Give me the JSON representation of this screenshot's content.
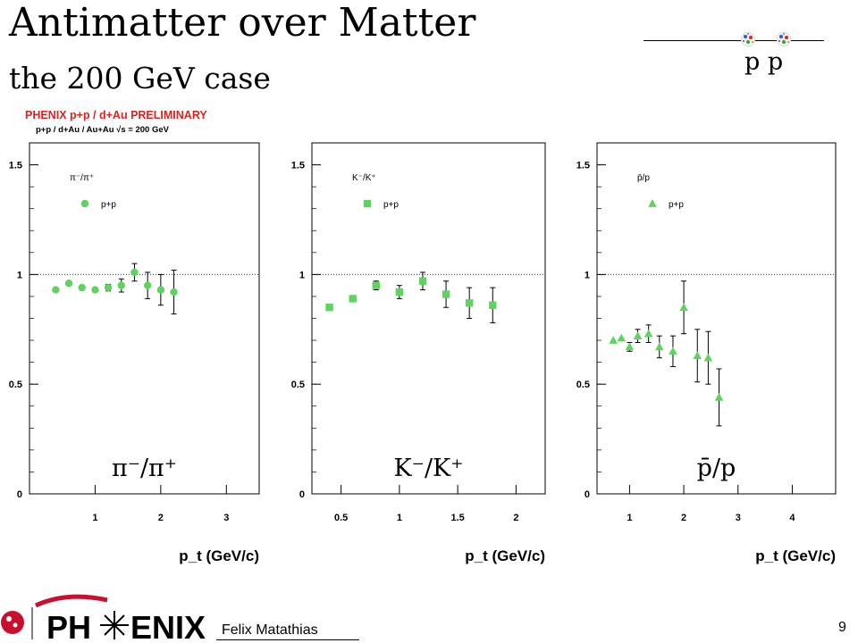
{
  "slide": {
    "title": "Antimatter over Matter",
    "subtitle": "the 200 GeV case",
    "header_particles": "p  p",
    "experiment_label": "PHENIX p+p / d+Au PRELIMINARY",
    "system_label": "p+p / d+Au / Au+Au  √s = 200 GeV",
    "author": "Felix Matathias",
    "page_number": "9",
    "logo_text_left": "PH",
    "logo_text_right": "ENIX"
  },
  "colors": {
    "marker": "#5fd35f",
    "experiment_label": "#e0211d",
    "text": "#000000"
  },
  "chart_data": [
    {
      "type": "scatter",
      "inset_label": "π⁻/π⁺",
      "overlay_label": "π⁻/π⁺",
      "legend": "p+p",
      "marker": "circle",
      "xlabel": "p_t (GeV/c)",
      "xlim": [
        0,
        3.5
      ],
      "ylim": [
        0,
        1.6
      ],
      "xticks": [
        "1",
        "2",
        "3"
      ],
      "yticks": [
        "0",
        "0.5",
        "1",
        "1.5"
      ],
      "reference_line": 1,
      "points": [
        {
          "x": 0.4,
          "y": 0.93,
          "err": 0.0
        },
        {
          "x": 0.6,
          "y": 0.96,
          "err": 0.0
        },
        {
          "x": 0.8,
          "y": 0.94,
          "err": 0.0
        },
        {
          "x": 1.0,
          "y": 0.93,
          "err": 0.01
        },
        {
          "x": 1.2,
          "y": 0.94,
          "err": 0.015
        },
        {
          "x": 1.4,
          "y": 0.95,
          "err": 0.03
        },
        {
          "x": 1.6,
          "y": 1.01,
          "err": 0.04
        },
        {
          "x": 1.8,
          "y": 0.95,
          "err": 0.06
        },
        {
          "x": 2.0,
          "y": 0.93,
          "err": 0.07
        },
        {
          "x": 2.2,
          "y": 0.92,
          "err": 0.1
        }
      ]
    },
    {
      "type": "scatter",
      "inset_label": "K⁻/K⁺",
      "overlay_label": "K⁻/K⁺",
      "legend": "p+p",
      "marker": "square",
      "xlabel": "p_t (GeV/c)",
      "xlim": [
        0.25,
        2.25
      ],
      "ylim": [
        0,
        1.6
      ],
      "xticks": [
        "0.5",
        "1",
        "1.5",
        "2"
      ],
      "yticks": [
        "0",
        "0.5",
        "1",
        "1.5"
      ],
      "reference_line": 1,
      "points": [
        {
          "x": 0.4,
          "y": 0.85,
          "err": 0.0
        },
        {
          "x": 0.6,
          "y": 0.89,
          "err": 0.0
        },
        {
          "x": 0.8,
          "y": 0.95,
          "err": 0.02
        },
        {
          "x": 1.0,
          "y": 0.92,
          "err": 0.03
        },
        {
          "x": 1.2,
          "y": 0.97,
          "err": 0.04
        },
        {
          "x": 1.4,
          "y": 0.91,
          "err": 0.06
        },
        {
          "x": 1.6,
          "y": 0.87,
          "err": 0.07
        },
        {
          "x": 1.8,
          "y": 0.86,
          "err": 0.08
        }
      ]
    },
    {
      "type": "scatter",
      "inset_label": "p̄/p",
      "overlay_label": "p̄/p",
      "legend": "p+p",
      "marker": "triangle",
      "xlabel": "p_t (GeV/c)",
      "xlim": [
        0.4,
        4.8
      ],
      "ylim": [
        0,
        1.6
      ],
      "xticks": [
        "1",
        "2",
        "3",
        "4"
      ],
      "yticks": [
        "0",
        "0.5",
        "1",
        "1.5"
      ],
      "reference_line": 1,
      "points": [
        {
          "x": 0.7,
          "y": 0.7,
          "err": 0.0
        },
        {
          "x": 0.85,
          "y": 0.71,
          "err": 0.0
        },
        {
          "x": 1.0,
          "y": 0.67,
          "err": 0.02
        },
        {
          "x": 1.15,
          "y": 0.72,
          "err": 0.03
        },
        {
          "x": 1.35,
          "y": 0.73,
          "err": 0.04
        },
        {
          "x": 1.55,
          "y": 0.67,
          "err": 0.05
        },
        {
          "x": 1.8,
          "y": 0.65,
          "err": 0.07
        },
        {
          "x": 2.0,
          "y": 0.85,
          "err": 0.12
        },
        {
          "x": 2.25,
          "y": 0.63,
          "err": 0.12
        },
        {
          "x": 2.45,
          "y": 0.62,
          "err": 0.12
        },
        {
          "x": 2.65,
          "y": 0.44,
          "err": 0.13
        }
      ]
    }
  ]
}
